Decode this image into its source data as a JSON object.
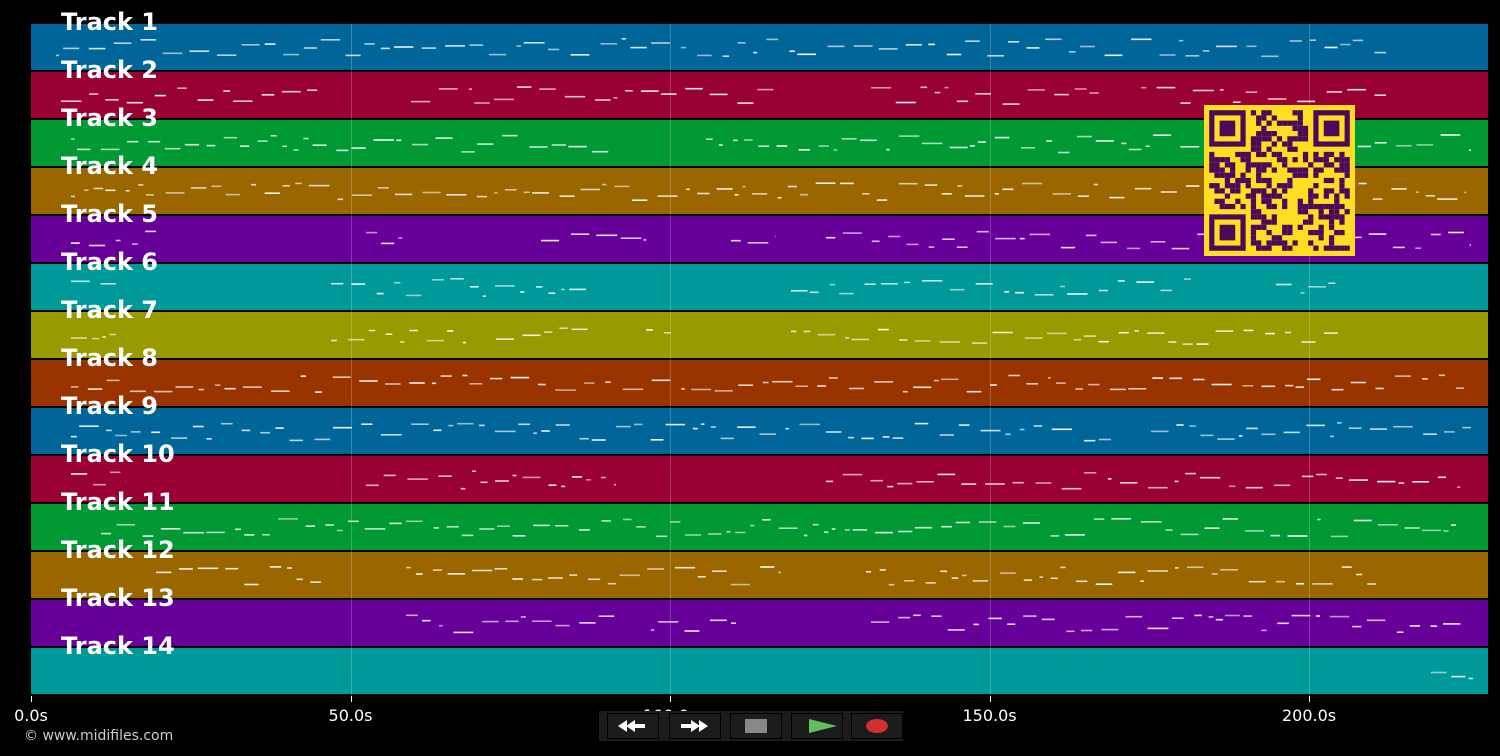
{
  "tracks": [
    {
      "label": "Track 1",
      "color": "#006699"
    },
    {
      "label": "Track 2",
      "color": "#990033"
    },
    {
      "label": "Track 3",
      "color": "#009933"
    },
    {
      "label": "Track 4",
      "color": "#996600"
    },
    {
      "label": "Track 5",
      "color": "#660099"
    },
    {
      "label": "Track 6",
      "color": "#009999"
    },
    {
      "label": "Track 7",
      "color": "#999900"
    },
    {
      "label": "Track 8",
      "color": "#993300"
    },
    {
      "label": "Track 9",
      "color": "#006699"
    },
    {
      "label": "Track 10",
      "color": "#990033"
    },
    {
      "label": "Track 11",
      "color": "#009933"
    },
    {
      "label": "Track 12",
      "color": "#996600"
    },
    {
      "label": "Track 13",
      "color": "#660099"
    },
    {
      "label": "Track 14",
      "color": "#009999"
    }
  ],
  "time_axis": {
    "ticks": [
      "0.0s",
      "50.0s",
      "100.0s",
      "150.0s",
      "200.0s"
    ],
    "tick_seconds": [
      0,
      50,
      100,
      150,
      200
    ],
    "max_seconds": 228
  },
  "copyright": "© www.midifiles.com",
  "transport": {
    "buttons": [
      {
        "name": "rewind-button",
        "icon": "rewind-icon",
        "color": "#000000"
      },
      {
        "name": "fast-forward-button",
        "icon": "fast-forward-icon",
        "color": "#000000"
      },
      {
        "name": "stop-button",
        "icon": "stop-icon",
        "color": "#3a3a3a"
      },
      {
        "name": "play-button",
        "icon": "play-icon",
        "color": "#1f5a24"
      },
      {
        "name": "record-button",
        "icon": "record-icon",
        "color": "#5a1a1a"
      }
    ]
  },
  "qr_code": {
    "icon": "qr-code-icon",
    "fg": "#4a0a5a",
    "bg": "#ffdd22"
  }
}
